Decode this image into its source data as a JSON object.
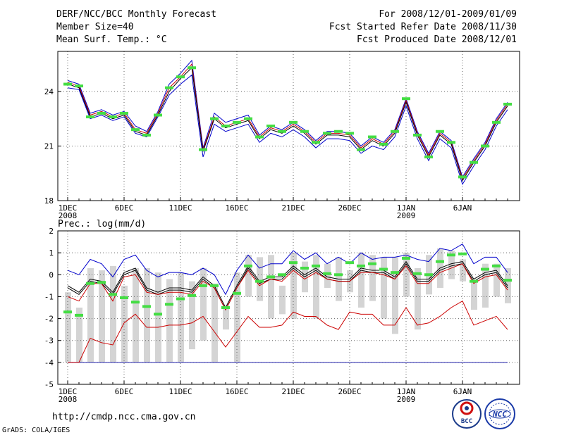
{
  "header": {
    "title": "DERF/NCC/BCC Monthly Forecast",
    "member_size": "Member Size=40",
    "variable": "Mean Surf. Temp.: °C",
    "period": "For 2008/12/01-2009/01/09",
    "fcst_started": "Fcst Started Refer Date 2008/11/30",
    "fcst_produced": "Fcst Produced Date 2008/12/01"
  },
  "footer": {
    "url": "http://cmdp.ncc.cma.gov.cn",
    "grads": "GrADS: COLA/IGES",
    "logo_bcc": "BCC",
    "logo_ncc": "NCC"
  },
  "colors": {
    "max": "#0000cc",
    "min": "#0000cc",
    "ensemble": "#000000",
    "upper": "#cc0000",
    "marker": "#44dd44",
    "bar": "#d4d4d4",
    "grid": "#666666",
    "baseline": "#2222aa"
  },
  "chart_data": [
    {
      "type": "line",
      "title": "Mean Surf. Temp.: °C",
      "x": [
        1,
        2,
        3,
        4,
        5,
        6,
        7,
        8,
        9,
        10,
        11,
        12,
        13,
        14,
        15,
        16,
        17,
        18,
        19,
        20,
        21,
        22,
        23,
        24,
        25,
        26,
        27,
        28,
        29,
        30,
        31,
        32,
        33,
        34,
        35,
        36,
        37,
        38,
        39,
        40
      ],
      "xticks": [
        {
          "x": 1,
          "label": "1DEC",
          "sub": "2008"
        },
        {
          "x": 6,
          "label": "6DEC",
          "sub": ""
        },
        {
          "x": 11,
          "label": "11DEC",
          "sub": ""
        },
        {
          "x": 16,
          "label": "16DEC",
          "sub": ""
        },
        {
          "x": 21,
          "label": "21DEC",
          "sub": ""
        },
        {
          "x": 26,
          "label": "26DEC",
          "sub": ""
        },
        {
          "x": 31,
          "label": "1JAN",
          "sub": "2009"
        },
        {
          "x": 36,
          "label": "6JAN",
          "sub": ""
        }
      ],
      "ylim": [
        18,
        26.2
      ],
      "yticks": [
        18,
        21,
        24
      ],
      "series": [
        {
          "name": "max",
          "values": [
            24.6,
            24.4,
            22.8,
            23.0,
            22.7,
            22.9,
            22.1,
            21.8,
            22.9,
            24.4,
            25.0,
            25.7,
            20.9,
            22.8,
            22.3,
            22.5,
            22.7,
            21.6,
            22.1,
            21.9,
            22.3,
            21.9,
            21.3,
            21.8,
            21.8,
            21.7,
            21.0,
            21.5,
            21.2,
            21.9,
            23.6,
            21.8,
            20.6,
            21.8,
            21.3,
            19.3,
            20.3,
            21.2,
            22.5,
            23.4
          ]
        },
        {
          "name": "upper",
          "values": [
            24.5,
            24.3,
            22.7,
            22.9,
            22.6,
            22.8,
            21.9,
            21.7,
            22.8,
            24.2,
            24.8,
            25.5,
            20.8,
            22.6,
            22.1,
            22.3,
            22.5,
            21.5,
            22.0,
            21.8,
            22.2,
            21.8,
            21.2,
            21.7,
            21.7,
            21.6,
            20.9,
            21.4,
            21.1,
            21.8,
            23.5,
            21.7,
            20.5,
            21.7,
            21.2,
            19.2,
            20.2,
            21.1,
            22.4,
            23.3
          ]
        },
        {
          "name": "ensemble",
          "values": [
            24.4,
            24.2,
            22.6,
            22.8,
            22.5,
            22.7,
            21.8,
            21.6,
            22.7,
            24.0,
            24.7,
            25.3,
            20.7,
            22.5,
            22.0,
            22.2,
            22.4,
            21.4,
            21.9,
            21.7,
            22.1,
            21.7,
            21.1,
            21.6,
            21.6,
            21.5,
            20.8,
            21.3,
            21.0,
            21.7,
            23.4,
            21.6,
            20.4,
            21.6,
            21.1,
            19.1,
            20.1,
            21.0,
            22.3,
            23.2
          ]
        },
        {
          "name": "min",
          "values": [
            24.2,
            24.1,
            22.5,
            22.7,
            22.4,
            22.6,
            21.7,
            21.5,
            22.6,
            23.8,
            24.4,
            24.9,
            20.4,
            22.2,
            21.8,
            22.0,
            22.2,
            21.2,
            21.7,
            21.5,
            21.9,
            21.5,
            20.9,
            21.4,
            21.4,
            21.3,
            20.6,
            21.0,
            20.8,
            21.5,
            23.2,
            21.4,
            20.2,
            21.4,
            20.9,
            18.9,
            19.9,
            20.8,
            22.1,
            23.0
          ]
        },
        {
          "name": "observed",
          "values": [
            24.4,
            24.3,
            22.6,
            22.8,
            22.6,
            22.8,
            21.9,
            21.6,
            22.7,
            24.2,
            24.8,
            25.3,
            20.8,
            22.5,
            22.1,
            22.3,
            22.5,
            21.5,
            22.1,
            21.8,
            22.3,
            21.8,
            21.2,
            21.7,
            21.8,
            21.7,
            20.8,
            21.5,
            21.1,
            21.8,
            23.6,
            21.6,
            20.4,
            21.8,
            21.2,
            19.3,
            20.1,
            21.0,
            22.3,
            23.3
          ]
        }
      ]
    },
    {
      "type": "line",
      "title": "Prec.: log(mm/d)",
      "x": [
        1,
        2,
        3,
        4,
        5,
        6,
        7,
        8,
        9,
        10,
        11,
        12,
        13,
        14,
        15,
        16,
        17,
        18,
        19,
        20,
        21,
        22,
        23,
        24,
        25,
        26,
        27,
        28,
        29,
        30,
        31,
        32,
        33,
        34,
        35,
        36,
        37,
        38,
        39,
        40
      ],
      "xticks": [
        {
          "x": 1,
          "label": "1DEC",
          "sub": "2008"
        },
        {
          "x": 6,
          "label": "6DEC",
          "sub": ""
        },
        {
          "x": 11,
          "label": "11DEC",
          "sub": ""
        },
        {
          "x": 16,
          "label": "16DEC",
          "sub": ""
        },
        {
          "x": 21,
          "label": "21DEC",
          "sub": ""
        },
        {
          "x": 26,
          "label": "26DEC",
          "sub": ""
        },
        {
          "x": 31,
          "label": "1JAN",
          "sub": "2009"
        },
        {
          "x": 36,
          "label": "6JAN",
          "sub": ""
        }
      ],
      "ylim": [
        -5,
        2
      ],
      "yticks": [
        -5,
        -4,
        -3,
        -2,
        -1,
        0,
        1,
        2
      ],
      "baseline": -4,
      "bars": {
        "tops": [
          -0.8,
          -1.5,
          0.3,
          0.2,
          0.4,
          -0.5,
          0.3,
          0.3,
          0.1,
          -0.2,
          0.1,
          -0.3,
          0.3,
          -0.4,
          -1.5,
          0.1,
          0.9,
          0.8,
          0.9,
          -0.5,
          1.0,
          0.6,
          0.9,
          0.5,
          0.8,
          0.2,
          1.0,
          0.9,
          0.8,
          0.8,
          1.0,
          0.3,
          0.9,
          1.2,
          1.1,
          0.7,
          -0.3,
          0.5,
          0.5,
          0.3
        ],
        "bottoms": [
          -4,
          -4,
          -4,
          -4,
          -4,
          -4,
          -4,
          -4,
          -4,
          -4,
          -4,
          -3.4,
          -3.0,
          -4,
          -2.5,
          -4,
          -1.0,
          -1.2,
          -2.0,
          -1.8,
          -2.0,
          -0.8,
          -2.0,
          -0.6,
          -1.2,
          -0.8,
          -1.5,
          -1.2,
          -2.0,
          -2.7,
          -1.0,
          -2.5,
          -0.9,
          -0.6,
          -0.2,
          -0.3,
          -1.6,
          -1.5,
          -1.0,
          -1.3
        ]
      },
      "series": [
        {
          "name": "max",
          "values": [
            0.2,
            0.0,
            0.7,
            0.5,
            -0.1,
            0.7,
            0.9,
            0.2,
            -0.1,
            0.1,
            0.1,
            0.0,
            0.3,
            0.0,
            -0.9,
            0.2,
            0.9,
            0.3,
            0.5,
            0.5,
            1.1,
            0.7,
            1.0,
            0.5,
            0.8,
            0.5,
            1.0,
            0.7,
            0.8,
            0.8,
            0.9,
            0.7,
            0.6,
            1.2,
            1.1,
            1.4,
            0.5,
            0.8,
            0.8,
            0.1
          ]
        },
        {
          "name": "ensemble",
          "values": [
            -0.5,
            -0.8,
            -0.2,
            -0.3,
            -0.8,
            0.1,
            0.3,
            -0.6,
            -0.8,
            -0.6,
            -0.6,
            -0.7,
            -0.1,
            -0.5,
            -1.5,
            -0.5,
            0.4,
            -0.3,
            -0.1,
            -0.1,
            0.4,
            0.0,
            0.3,
            -0.1,
            -0.2,
            -0.2,
            0.3,
            0.2,
            0.2,
            -0.1,
            0.6,
            -0.2,
            -0.2,
            0.3,
            0.5,
            0.6,
            -0.2,
            0.1,
            0.2,
            -0.5
          ]
        },
        {
          "name": "ensemble_low",
          "values": [
            -0.6,
            -0.9,
            -0.3,
            -0.4,
            -0.9,
            0.0,
            0.2,
            -0.7,
            -0.9,
            -0.7,
            -0.7,
            -0.8,
            -0.2,
            -0.6,
            -1.6,
            -0.6,
            0.3,
            -0.4,
            -0.2,
            -0.2,
            0.3,
            -0.1,
            0.2,
            -0.2,
            -0.3,
            -0.3,
            0.2,
            0.1,
            0.1,
            -0.2,
            0.5,
            -0.3,
            -0.3,
            0.2,
            0.4,
            0.5,
            -0.3,
            0.0,
            0.1,
            -0.6
          ]
        },
        {
          "name": "upper",
          "values": [
            -1.0,
            -1.2,
            -0.4,
            -0.4,
            -1.2,
            -0.1,
            0.0,
            -0.8,
            -0.9,
            -0.8,
            -0.8,
            -0.9,
            -0.3,
            -0.6,
            -1.6,
            -0.6,
            0.2,
            -0.5,
            -0.2,
            -0.3,
            0.2,
            -0.2,
            0.1,
            -0.2,
            -0.3,
            -0.3,
            0.1,
            0.1,
            0.0,
            -0.2,
            0.4,
            -0.4,
            -0.4,
            0.1,
            0.3,
            0.5,
            -0.4,
            -0.1,
            0.0,
            -0.7
          ]
        },
        {
          "name": "lower",
          "values": [
            -4.0,
            -4.0,
            -2.9,
            -3.1,
            -3.2,
            -2.2,
            -1.8,
            -2.4,
            -2.4,
            -2.3,
            -2.3,
            -2.2,
            -1.9,
            -2.6,
            -3.3,
            -2.6,
            -1.9,
            -2.4,
            -2.4,
            -2.3,
            -1.7,
            -1.9,
            -1.9,
            -2.3,
            -2.5,
            -1.7,
            -1.8,
            -1.8,
            -2.3,
            -2.3,
            -1.5,
            -2.3,
            -2.2,
            -1.9,
            -1.5,
            -1.2,
            -2.3,
            -2.1,
            -1.9,
            -2.5
          ]
        },
        {
          "name": "observed",
          "values": [
            -1.7,
            -1.85,
            -0.4,
            -0.35,
            -0.9,
            -1.05,
            -1.25,
            -1.45,
            -1.8,
            -1.35,
            -1.1,
            -0.95,
            -0.5,
            -0.5,
            -1.5,
            -0.85,
            0.4,
            -0.3,
            -0.1,
            0.0,
            0.55,
            0.3,
            0.4,
            0.05,
            0.0,
            0.55,
            0.4,
            0.5,
            0.25,
            0.1,
            0.75,
            0.05,
            0.0,
            0.6,
            0.9,
            0.95,
            -0.3,
            0.25,
            0.4,
            -0.25
          ]
        }
      ]
    }
  ]
}
